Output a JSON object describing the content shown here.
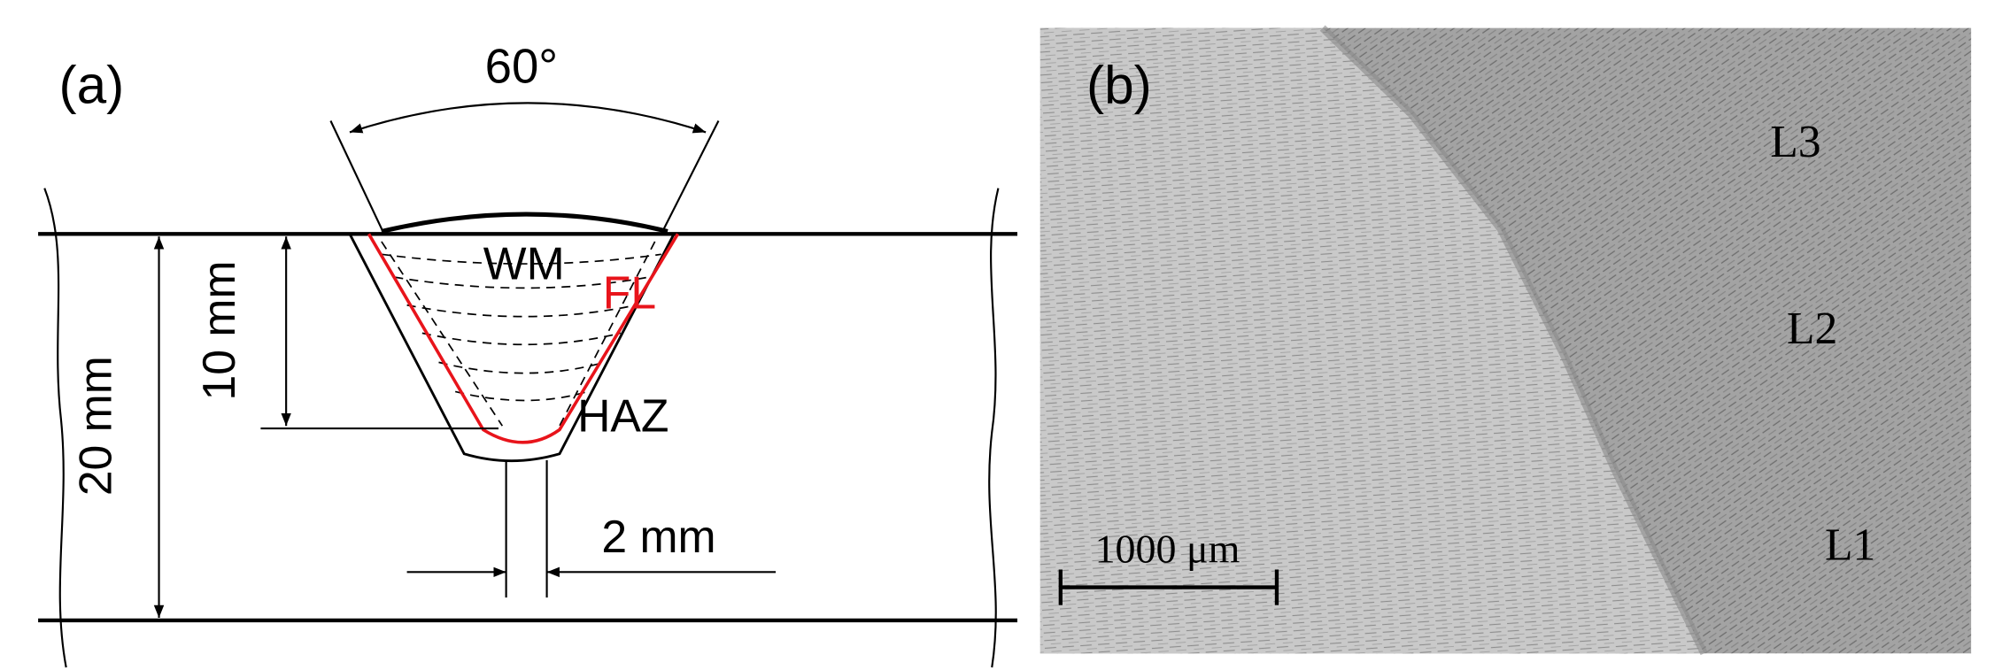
{
  "panel_a": {
    "label": "(a)",
    "angle": "60°",
    "weld_metal": "WM",
    "fusion_line": "FL",
    "heat_affected_zone": "HAZ",
    "groove_depth": "10 mm",
    "plate_thickness": "20 mm",
    "root_gap": "2 mm"
  },
  "panel_b": {
    "label": "(b)",
    "layers": [
      "L3",
      "L2",
      "L1"
    ],
    "scale_bar": "1000 μm"
  }
}
